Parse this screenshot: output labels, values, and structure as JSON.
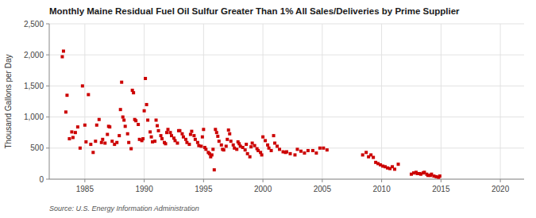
{
  "chart_data": {
    "type": "scatter",
    "title": "Monthly Maine Residual Fuel Oil Sulfur Greater Than 1% All Sales/Deliveries by Prime Supplier",
    "ylabel": "Thousand Gallons per Day",
    "source": "Source: U.S. Energy Information Administration",
    "color": "#cc0000",
    "marker": "square",
    "grid": true,
    "xlim": [
      1982,
      2022
    ],
    "ylim": [
      0,
      2500
    ],
    "xticks": [
      1985,
      1990,
      1995,
      2000,
      2005,
      2010,
      2015,
      2020
    ],
    "yticks": [
      0,
      500,
      {
        "value": 1000,
        "label": "1,000"
      },
      {
        "value": 1500,
        "label": "1,500"
      },
      {
        "value": 2000,
        "label": "2,000"
      },
      {
        "value": 2500,
        "label": "2,500"
      }
    ],
    "x": [
      1983.1,
      1983.2,
      1983.4,
      1983.5,
      1983.7,
      1983.9,
      1984.0,
      1984.2,
      1984.4,
      1984.6,
      1984.8,
      1985.0,
      1985.1,
      1985.3,
      1985.5,
      1985.7,
      1985.9,
      1986.0,
      1986.2,
      1986.4,
      1986.5,
      1986.7,
      1986.9,
      1987.0,
      1987.1,
      1987.3,
      1987.5,
      1987.7,
      1987.9,
      1988.0,
      1988.1,
      1988.2,
      1988.3,
      1988.4,
      1988.6,
      1988.7,
      1988.9,
      1989.0,
      1989.1,
      1989.2,
      1989.3,
      1989.5,
      1989.6,
      1989.8,
      1989.9,
      1990.0,
      1990.1,
      1990.2,
      1990.3,
      1990.5,
      1990.6,
      1990.7,
      1990.9,
      1991.0,
      1991.1,
      1991.2,
      1991.4,
      1991.5,
      1991.7,
      1991.8,
      1991.9,
      1992.0,
      1992.2,
      1992.3,
      1992.5,
      1992.6,
      1992.8,
      1992.9,
      1993.0,
      1993.2,
      1993.3,
      1993.5,
      1993.6,
      1993.8,
      1993.9,
      1994.0,
      1994.2,
      1994.3,
      1994.5,
      1994.6,
      1994.8,
      1994.9,
      1995.0,
      1995.1,
      1995.2,
      1995.4,
      1995.5,
      1995.6,
      1995.7,
      1995.8,
      1995.9,
      1996.0,
      1996.1,
      1996.2,
      1996.3,
      1996.5,
      1996.6,
      1996.7,
      1996.9,
      1997.0,
      1997.1,
      1997.2,
      1997.3,
      1997.5,
      1997.6,
      1997.8,
      1997.9,
      1998.0,
      1998.1,
      1998.3,
      1998.5,
      1998.6,
      1998.7,
      1998.9,
      1999.0,
      1999.1,
      1999.3,
      1999.5,
      1999.6,
      1999.8,
      1999.9,
      2000.0,
      2000.2,
      2000.4,
      2000.5,
      2000.7,
      2000.9,
      2001.0,
      2001.2,
      2001.4,
      2001.7,
      2001.9,
      2002.0,
      2002.3,
      2002.7,
      2002.9,
      2003.2,
      2003.5,
      2003.8,
      2004.2,
      2004.5,
      2004.8,
      2005.1,
      2005.4,
      2008.4,
      2008.7,
      2008.9,
      2009.1,
      2009.3,
      2009.5,
      2009.7,
      2009.9,
      2010.1,
      2010.3,
      2010.5,
      2010.7,
      2010.9,
      2011.1,
      2011.4,
      2012.5,
      2012.7,
      2012.9,
      2013.0,
      2013.2,
      2013.3,
      2013.5,
      2013.6,
      2013.8,
      2013.9,
      2014.1,
      2014.2,
      2014.4,
      2014.6,
      2014.8,
      2014.9
    ],
    "values": [
      1970,
      2060,
      1080,
      1350,
      650,
      760,
      670,
      750,
      840,
      500,
      1500,
      870,
      600,
      1360,
      560,
      430,
      610,
      870,
      960,
      590,
      640,
      580,
      720,
      850,
      840,
      610,
      560,
      590,
      700,
      1120,
      1560,
      1000,
      950,
      850,
      730,
      590,
      490,
      1430,
      1390,
      960,
      940,
      880,
      640,
      620,
      650,
      1100,
      1620,
      1200,
      950,
      760,
      680,
      600,
      610,
      950,
      860,
      780,
      700,
      650,
      590,
      570,
      750,
      800,
      750,
      700,
      660,
      620,
      580,
      780,
      780,
      730,
      680,
      640,
      590,
      560,
      720,
      770,
      700,
      640,
      590,
      540,
      530,
      680,
      800,
      510,
      480,
      430,
      410,
      360,
      390,
      480,
      150,
      800,
      750,
      690,
      610,
      550,
      480,
      470,
      530,
      640,
      790,
      730,
      610,
      550,
      500,
      480,
      600,
      570,
      530,
      510,
      470,
      560,
      410,
      360,
      520,
      580,
      540,
      490,
      460,
      430,
      390,
      680,
      620,
      550,
      500,
      460,
      700,
      580,
      530,
      480,
      440,
      430,
      440,
      410,
      390,
      480,
      450,
      420,
      460,
      460,
      420,
      500,
      500,
      470,
      390,
      430,
      360,
      390,
      350,
      270,
      250,
      230,
      210,
      200,
      180,
      170,
      200,
      160,
      240,
      80,
      100,
      110,
      90,
      90,
      80,
      100,
      110,
      80,
      60,
      60,
      80,
      50,
      40,
      30,
      50
    ]
  }
}
